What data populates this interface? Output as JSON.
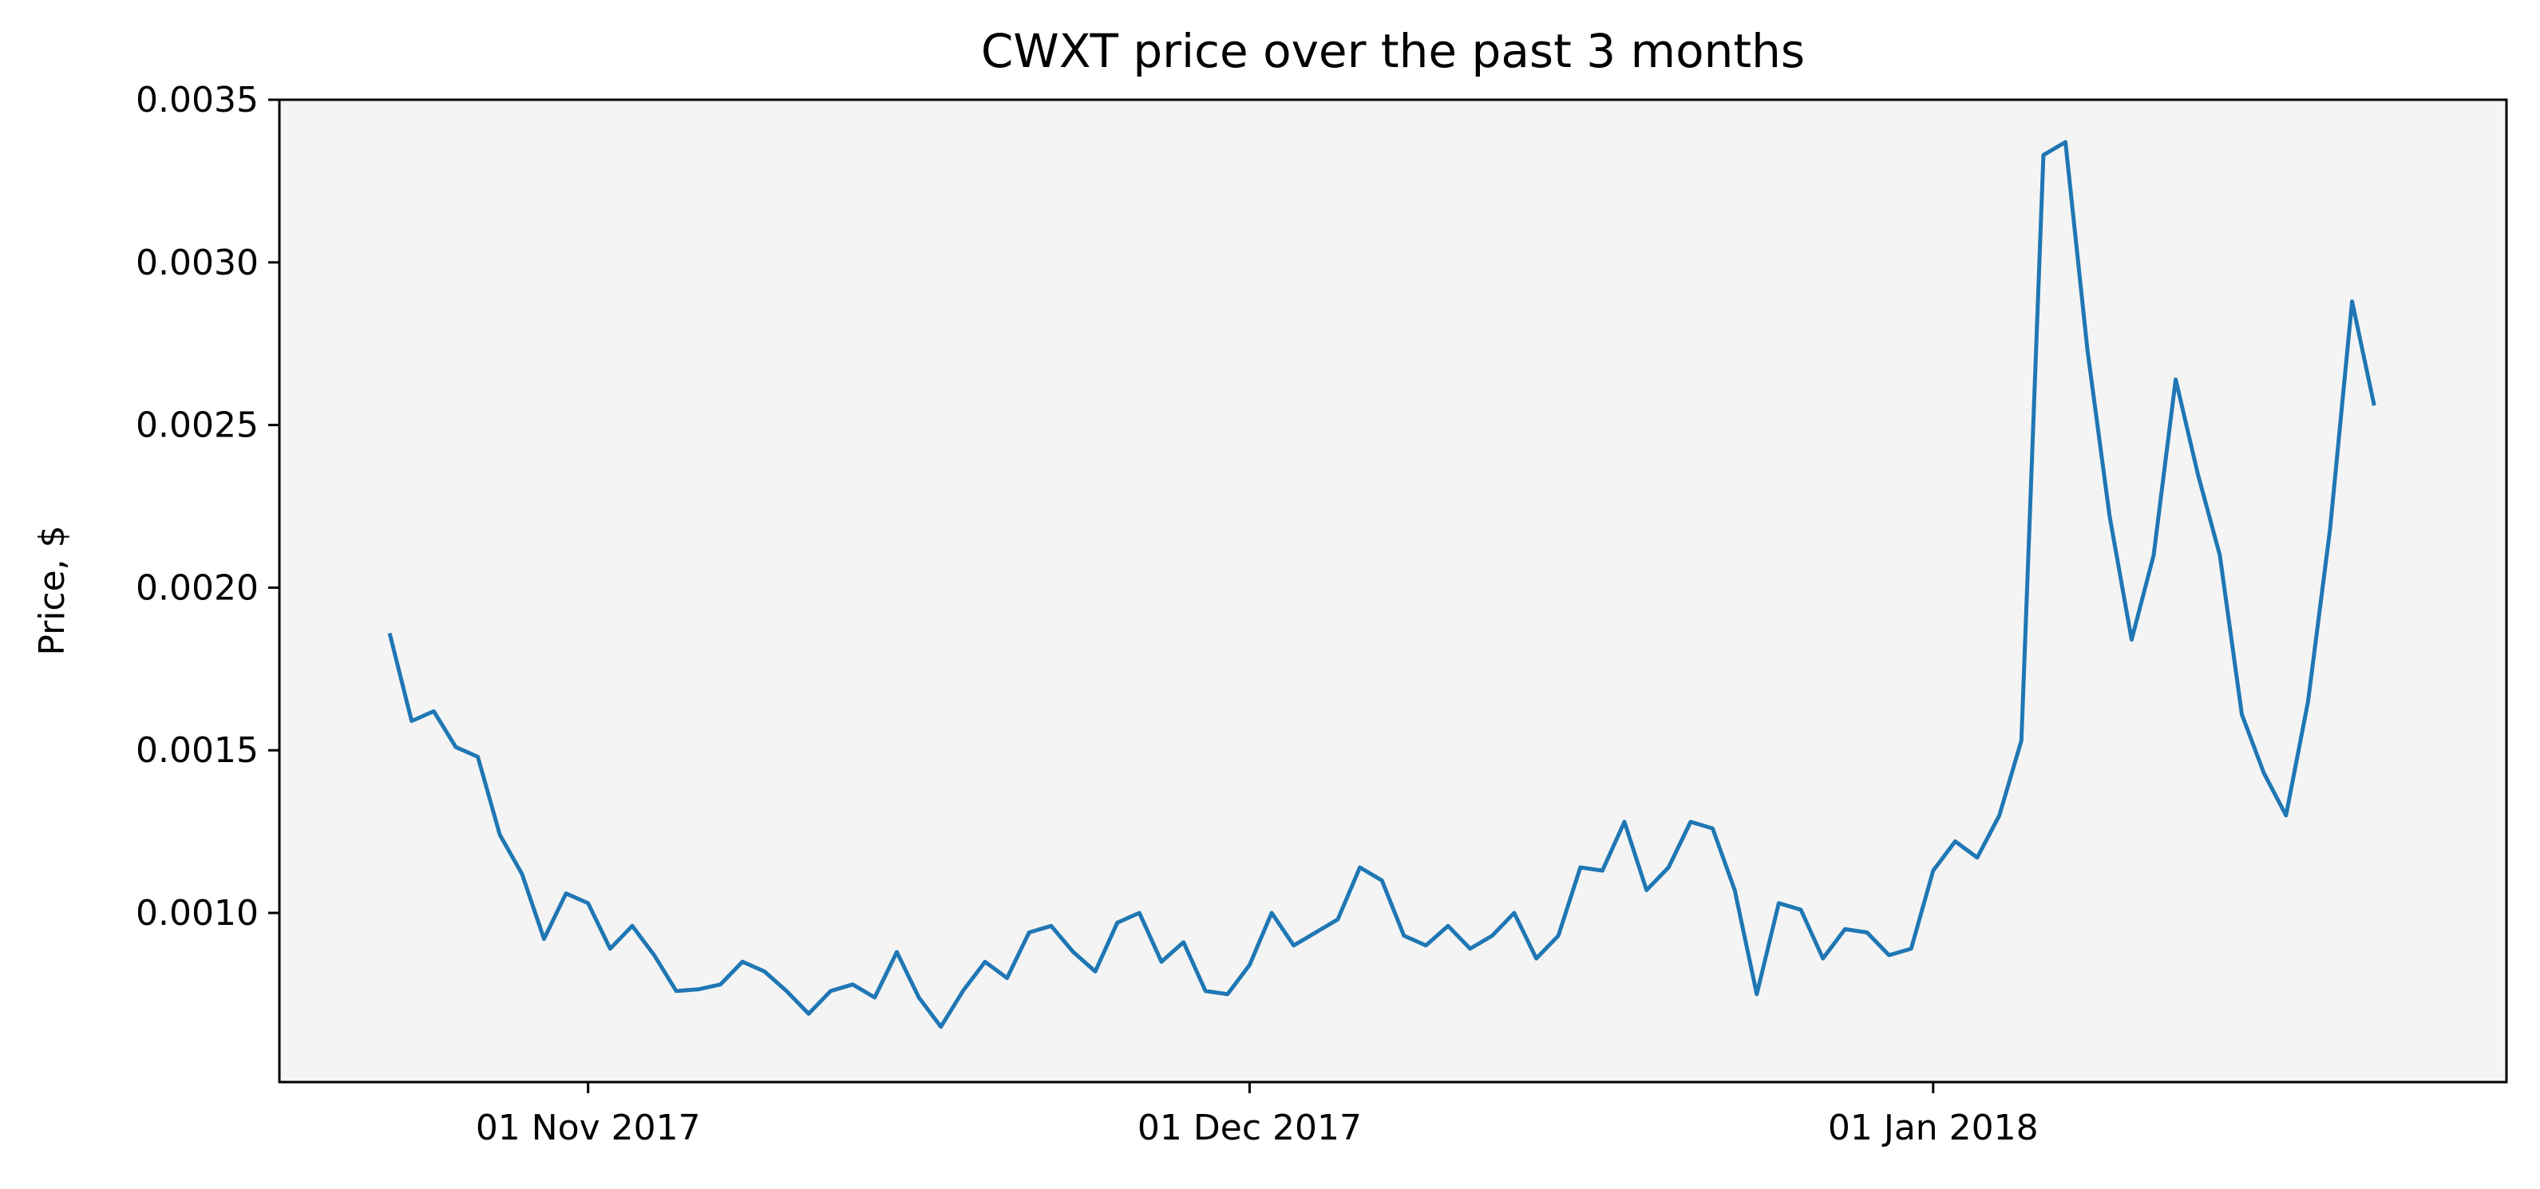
{
  "chart_data": {
    "type": "line",
    "title": "CWXT price over the past 3 months",
    "xlabel": "",
    "ylabel": "Price, $",
    "ylim": [
      0.00048,
      0.0035
    ],
    "xlim": [
      "2017-10-18",
      "2018-01-27"
    ],
    "grid": false,
    "plot_background": "#f4f4f4",
    "line_color": "#1f77b4",
    "x_ticks": [
      {
        "date": "2017-11-01",
        "label": "01 Nov 2017"
      },
      {
        "date": "2017-12-01",
        "label": "01 Dec 2017"
      },
      {
        "date": "2018-01-01",
        "label": "01 Jan 2018"
      }
    ],
    "y_ticks": [
      {
        "value": 0.001,
        "label": "0.0010"
      },
      {
        "value": 0.0015,
        "label": "0.0015"
      },
      {
        "value": 0.002,
        "label": "0.0020"
      },
      {
        "value": 0.0025,
        "label": "0.0025"
      },
      {
        "value": 0.003,
        "label": "0.0030"
      },
      {
        "value": 0.0035,
        "label": "0.0035"
      }
    ],
    "series": [
      {
        "start_date": "2017-10-23",
        "values": [
          0.00186,
          0.00159,
          0.00162,
          0.00151,
          0.00148,
          0.00124,
          0.00112,
          0.00092,
          0.00106,
          0.00103,
          0.00089,
          0.00096,
          0.00087,
          0.00076,
          0.000765,
          0.00078,
          0.00085,
          0.00082,
          0.00076,
          0.00069,
          0.00076,
          0.00078,
          0.00074,
          0.00088,
          0.00074,
          0.00065,
          0.00076,
          0.00085,
          0.0008,
          0.00094,
          0.00096,
          0.00088,
          0.00082,
          0.00097,
          0.001,
          0.00085,
          0.00091,
          0.00076,
          0.00075,
          0.00084,
          0.001,
          0.0009,
          0.00094,
          0.00098,
          0.00114,
          0.0011,
          0.00093,
          0.0009,
          0.00096,
          0.00089,
          0.00093,
          0.001,
          0.00086,
          0.00093,
          0.00114,
          0.00113,
          0.00128,
          0.00107,
          0.00114,
          0.00128,
          0.00126,
          0.00107,
          0.00075,
          0.00103,
          0.00101,
          0.00086,
          0.00095,
          0.00094,
          0.00087,
          0.00089,
          0.00113,
          0.00122,
          0.00117,
          0.0013,
          0.00153,
          0.00333,
          0.00337,
          0.00273,
          0.00222,
          0.00184,
          0.0021,
          0.00264,
          0.00235,
          0.0021,
          0.00161,
          0.00143,
          0.0013,
          0.00165,
          0.00218,
          0.00288,
          0.00256
        ]
      }
    ]
  }
}
